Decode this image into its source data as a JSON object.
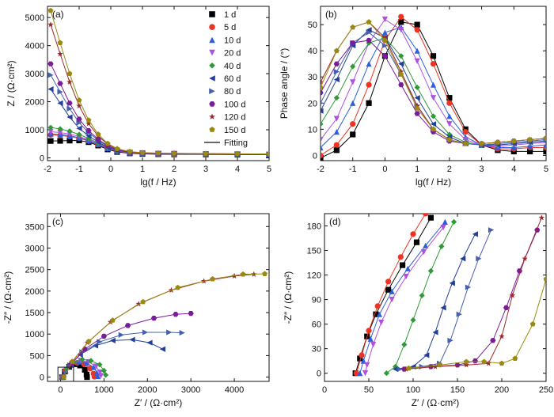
{
  "series_styles": [
    {
      "name": "1 d",
      "color": "#000000",
      "marker": "square"
    },
    {
      "name": "5 d",
      "color": "#ee3322",
      "marker": "circle"
    },
    {
      "name": "10 d",
      "color": "#2c5fe0",
      "marker": "triangle-up"
    },
    {
      "name": "20 d",
      "color": "#b050e0",
      "marker": "triangle-down"
    },
    {
      "name": "40 d",
      "color": "#2f9a36",
      "marker": "diamond"
    },
    {
      "name": "60 d",
      "color": "#22409a",
      "marker": "triangle-left"
    },
    {
      "name": "80 d",
      "color": "#4560b0",
      "marker": "triangle-right"
    },
    {
      "name": "100 d",
      "color": "#7a1b9a",
      "marker": "hexagon"
    },
    {
      "name": "120 d",
      "color": "#9a2a2a",
      "marker": "star"
    },
    {
      "name": "150 d",
      "color": "#9a8a12",
      "marker": "pentagon"
    }
  ],
  "fitting_label": "Fitting",
  "chart_data": [
    {
      "panel": "(a)",
      "type": "scatter",
      "xlabel": "lg(f / Hz)",
      "ylabel": "Z / (Ω·cm²)",
      "xlim": [
        -2,
        5
      ],
      "ylim": [
        -100,
        5400
      ],
      "xticks": [
        "-2",
        "-1",
        "0",
        "1",
        "2",
        "3",
        "4",
        "5"
      ],
      "yticks": [
        "0",
        "1000",
        "2000",
        "3000",
        "4000",
        "5000"
      ],
      "x": [
        -1.9,
        -1.6,
        -1.3,
        -1.0,
        -0.7,
        -0.4,
        -0.1,
        0.2,
        0.6,
        1.0,
        1.5,
        2.0,
        3.0,
        4.0,
        5.0
      ],
      "series": [
        {
          "name": "1 d",
          "values": [
            600,
            605,
            615,
            620,
            560,
            440,
            300,
            210,
            160,
            140,
            130,
            125,
            120,
            115,
            110
          ]
        },
        {
          "name": "5 d",
          "values": [
            820,
            800,
            760,
            700,
            600,
            470,
            330,
            230,
            170,
            150,
            140,
            135,
            128,
            122,
            115
          ]
        },
        {
          "name": "10 d",
          "values": [
            860,
            830,
            790,
            720,
            610,
            480,
            340,
            240,
            180,
            160,
            148,
            142,
            135,
            128,
            120
          ]
        },
        {
          "name": "20 d",
          "values": [
            930,
            900,
            850,
            760,
            640,
            500,
            350,
            250,
            185,
            165,
            152,
            146,
            138,
            130,
            122
          ]
        },
        {
          "name": "40 d",
          "values": [
            1080,
            1030,
            950,
            830,
            690,
            530,
            370,
            260,
            190,
            168,
            155,
            148,
            140,
            132,
            124
          ]
        },
        {
          "name": "60 d",
          "values": [
            2450,
            1950,
            1450,
            1050,
            780,
            560,
            380,
            265,
            195,
            170,
            157,
            150,
            142,
            134,
            126
          ]
        },
        {
          "name": "80 d",
          "values": [
            2950,
            2350,
            1750,
            1250,
            900,
            620,
            410,
            280,
            200,
            174,
            160,
            152,
            144,
            136,
            128
          ]
        },
        {
          "name": "100 d",
          "values": [
            3350,
            2650,
            1950,
            1380,
            970,
            660,
            430,
            290,
            205,
            176,
            162,
            154,
            146,
            138,
            130
          ]
        },
        {
          "name": "120 d",
          "values": [
            4750,
            3700,
            2700,
            1850,
            1220,
            780,
            480,
            310,
            215,
            180,
            165,
            157,
            149,
            141,
            133
          ]
        },
        {
          "name": "150 d",
          "values": [
            5250,
            4100,
            3000,
            2050,
            1340,
            840,
            510,
            325,
            222,
            184,
            168,
            160,
            152,
            144,
            136
          ]
        }
      ]
    },
    {
      "panel": "(b)",
      "type": "scatter",
      "xlabel": "lg(f / Hz)",
      "ylabel": "Phase angle / (°)",
      "xlim": [
        -2,
        5
      ],
      "ylim": [
        -2,
        57
      ],
      "xticks": [
        "-2",
        "-1",
        "0",
        "1",
        "2",
        "3",
        "4",
        "5"
      ],
      "yticks": [
        "0",
        "10",
        "20",
        "30",
        "40",
        "50"
      ],
      "x": [
        -2.0,
        -1.5,
        -1.0,
        -0.5,
        0.0,
        0.5,
        1.0,
        1.5,
        2.0,
        2.5,
        3.0,
        3.5,
        4.0,
        4.5,
        5.0
      ],
      "series": [
        {
          "name": "1 d",
          "values": [
            -1,
            2,
            8,
            20,
            38,
            51,
            50,
            38,
            22,
            10,
            4,
            2,
            1.5,
            1.5,
            1.5
          ]
        },
        {
          "name": "5 d",
          "values": [
            0,
            4,
            12,
            27,
            44,
            53,
            48,
            35,
            20,
            9,
            4,
            2.5,
            2.5,
            3,
            3
          ]
        },
        {
          "name": "10 d",
          "values": [
            3,
            9,
            20,
            35,
            47,
            49,
            40,
            27,
            15,
            7,
            4,
            3,
            3,
            3.5,
            4
          ]
        },
        {
          "name": "20 d",
          "values": [
            6,
            14,
            28,
            43,
            52,
            48,
            36,
            22,
            12,
            6,
            4,
            3.5,
            4,
            4.5,
            5
          ]
        },
        {
          "name": "40 d",
          "values": [
            12,
            22,
            34,
            43,
            45,
            38,
            26,
            15,
            8,
            5,
            4,
            4,
            4.5,
            5,
            5.5
          ]
        },
        {
          "name": "60 d",
          "values": [
            17,
            29,
            42,
            48,
            45,
            35,
            22,
            12,
            7,
            4.5,
            4,
            4,
            4.5,
            5,
            5.5
          ]
        },
        {
          "name": "80 d",
          "values": [
            20,
            32,
            43,
            47,
            42,
            31,
            19,
            10,
            6,
            4.5,
            4,
            4.5,
            5,
            5.5,
            6
          ]
        },
        {
          "name": "100 d",
          "values": [
            24,
            35,
            43,
            44,
            38,
            27,
            16,
            9,
            5.5,
            4.5,
            4.5,
            5,
            5.5,
            6,
            6.5
          ]
        },
        {
          "name": "120 d",
          "values": [
            28,
            40,
            49,
            51,
            45,
            32,
            19,
            10,
            6,
            4.5,
            4.5,
            5,
            5.5,
            6,
            6.5
          ]
        },
        {
          "name": "150 d",
          "values": [
            26,
            40,
            49,
            51,
            44,
            31,
            18,
            10,
            6,
            4.5,
            4.5,
            5,
            5.5,
            6,
            6.5
          ]
        }
      ]
    },
    {
      "panel": "(c)",
      "type": "scatter",
      "xlabel": "Z′ / (Ω·cm²)",
      "ylabel": "-Z″ / (Ω·cm²)",
      "xlim": [
        -300,
        4800
      ],
      "ylim": [
        -100,
        3800
      ],
      "xticks": [
        "0",
        "1000",
        "2000",
        "3000",
        "4000"
      ],
      "yticks": [
        "0",
        "500",
        "1000",
        "1500",
        "2000",
        "2500",
        "3000",
        "3500"
      ],
      "series": [
        {
          "name": "1 d",
          "x": [
            40,
            100,
            200,
            320,
            450,
            560,
            600,
            610
          ],
          "y": [
            0,
            130,
            240,
            300,
            270,
            170,
            60,
            0
          ]
        },
        {
          "name": "5 d",
          "x": [
            40,
            110,
            230,
            380,
            540,
            680,
            760,
            780
          ],
          "y": [
            0,
            150,
            270,
            330,
            300,
            200,
            80,
            10
          ]
        },
        {
          "name": "10 d",
          "x": [
            45,
            120,
            260,
            430,
            600,
            760,
            840,
            860
          ],
          "y": [
            0,
            160,
            290,
            360,
            330,
            230,
            100,
            20
          ]
        },
        {
          "name": "20 d",
          "x": [
            50,
            130,
            280,
            460,
            650,
            820,
            910,
            930
          ],
          "y": [
            0,
            170,
            310,
            380,
            350,
            250,
            110,
            30
          ]
        },
        {
          "name": "40 d",
          "x": [
            55,
            140,
            300,
            500,
            700,
            900,
            1000,
            1040
          ],
          "y": [
            0,
            190,
            340,
            410,
            380,
            290,
            150,
            50
          ]
        },
        {
          "name": "60 d",
          "x": [
            60,
            200,
            450,
            800,
            1200,
            1650,
            2050,
            2350
          ],
          "y": [
            0,
            260,
            520,
            730,
            850,
            870,
            800,
            650
          ]
        },
        {
          "name": "80 d",
          "x": [
            65,
            220,
            500,
            900,
            1400,
            1950,
            2500,
            2800
          ],
          "y": [
            0,
            280,
            580,
            820,
            980,
            1040,
            1040,
            1030
          ]
        },
        {
          "name": "100 d",
          "x": [
            70,
            240,
            560,
            1000,
            1550,
            2150,
            2650,
            3000
          ],
          "y": [
            0,
            300,
            650,
            950,
            1200,
            1370,
            1460,
            1480
          ]
        },
        {
          "name": "120 d",
          "x": [
            75,
            260,
            620,
            1150,
            1800,
            2550,
            3300,
            4000,
            4450
          ],
          "y": [
            0,
            350,
            800,
            1280,
            1700,
            2020,
            2230,
            2350,
            2390
          ]
        },
        {
          "name": "150 d",
          "x": [
            75,
            270,
            650,
            1200,
            1900,
            2700,
            3500,
            4200,
            4700
          ],
          "y": [
            0,
            360,
            830,
            1320,
            1750,
            2080,
            2280,
            2390,
            2400
          ]
        }
      ]
    },
    {
      "panel": "(d)",
      "type": "scatter",
      "xlabel": "Z′ / (Ω·cm²)",
      "ylabel": "-Z″ / (Ω·cm²)",
      "xlim": [
        0,
        250
      ],
      "ylim": [
        -10,
        195
      ],
      "xticks": [
        "0",
        "50",
        "100",
        "150",
        "200",
        "250"
      ],
      "yticks": [
        "0",
        "30",
        "60",
        "90",
        "120",
        "150",
        "180"
      ],
      "series": [
        {
          "name": "1 d",
          "x": [
            35,
            40,
            48,
            58,
            72,
            88,
            104,
            120
          ],
          "y": [
            0,
            18,
            45,
            72,
            102,
            132,
            160,
            190
          ]
        },
        {
          "name": "5 d",
          "x": [
            36,
            42,
            50,
            60,
            72,
            86,
            100,
            114
          ],
          "y": [
            0,
            22,
            52,
            82,
            112,
            142,
            170,
            195
          ]
        },
        {
          "name": "10 d",
          "x": [
            40,
            44,
            52,
            62,
            76,
            94,
            114,
            136
          ],
          "y": [
            0,
            15,
            42,
            72,
            100,
            128,
            156,
            185
          ]
        },
        {
          "name": "20 d",
          "x": [
            46,
            48,
            55,
            64,
            76,
            92,
            112,
            134
          ],
          "y": [
            0,
            10,
            35,
            62,
            90,
            118,
            148,
            178
          ]
        },
        {
          "name": "40 d",
          "x": [
            70,
            80,
            90,
            100,
            110,
            120,
            132,
            146
          ],
          "y": [
            0,
            8,
            35,
            65,
            95,
            125,
            155,
            185
          ]
        },
        {
          "name": "60 d",
          "x": [
            80,
            100,
            115,
            125,
            134,
            144,
            156,
            170
          ],
          "y": [
            5,
            8,
            22,
            50,
            80,
            110,
            140,
            170
          ]
        },
        {
          "name": "80 d",
          "x": [
            85,
            110,
            130,
            142,
            152,
            162,
            174,
            188
          ],
          "y": [
            5,
            8,
            12,
            40,
            72,
            105,
            140,
            175
          ]
        },
        {
          "name": "100 d",
          "x": [
            90,
            120,
            150,
            170,
            190,
            205,
            220,
            240
          ],
          "y": [
            5,
            8,
            10,
            15,
            40,
            80,
            125,
            175
          ]
        },
        {
          "name": "120 d",
          "x": [
            92,
            125,
            160,
            185,
            200,
            212,
            226,
            245
          ],
          "y": [
            5,
            8,
            10,
            12,
            45,
            95,
            140,
            190
          ]
        },
        {
          "name": "150 d",
          "x": [
            95,
            130,
            160,
            180,
            200,
            215,
            235,
            250
          ],
          "y": [
            6,
            10,
            14,
            14,
            12,
            18,
            60,
            115
          ]
        }
      ]
    }
  ]
}
